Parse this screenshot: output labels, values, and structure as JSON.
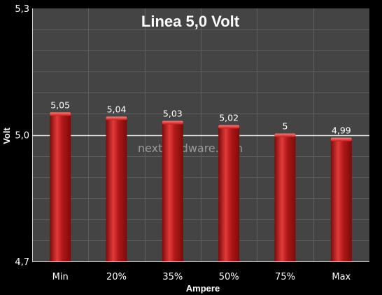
{
  "watermark": "nexthardware.com",
  "colors": {
    "background": "#000000",
    "plot_area": "#444444",
    "gridline": "#5e5e5e",
    "reference_line": "#e6e6e6",
    "bar_fill": "#b01818",
    "bar_light": "#e23a3a",
    "bar_dark": "#7a0c0c",
    "text": "#ffffff"
  },
  "chart_data": {
    "type": "bar",
    "title": "Linea 5,0 Volt",
    "xlabel": "Ampere",
    "ylabel": "Volt",
    "categories": [
      "Min",
      "20%",
      "35%",
      "50%",
      "75%",
      "Max"
    ],
    "values": [
      5.05,
      5.04,
      5.03,
      5.02,
      5.0,
      4.99
    ],
    "value_labels": [
      "5,05",
      "5,04",
      "5,03",
      "5,02",
      "5",
      "4,99"
    ],
    "ylim": [
      4.7,
      5.3
    ],
    "y_ticks": [
      4.7,
      5.0,
      5.3
    ],
    "y_tick_labels": [
      "4,7",
      "5,0",
      "5,3"
    ],
    "reference_line": 5.0,
    "grid": true,
    "legend": "none"
  }
}
